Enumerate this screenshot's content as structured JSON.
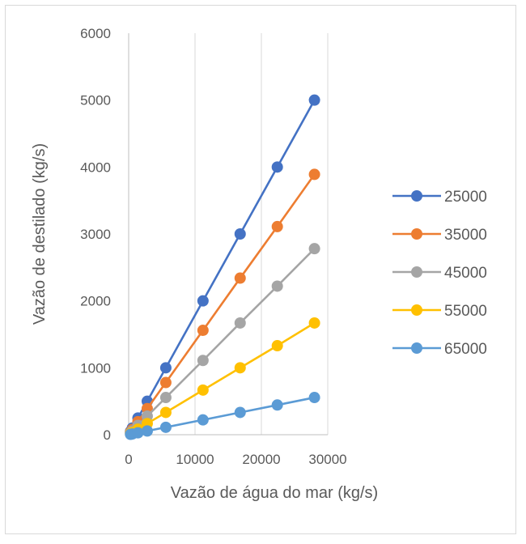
{
  "chart_data": {
    "type": "line",
    "title": "",
    "xlabel": "Vazão de água do mar (kg/s)",
    "ylabel": "Vazão de destilado (kg/s)",
    "xlim": [
      0,
      30000
    ],
    "ylim": [
      0,
      6000
    ],
    "xticks": [
      "0",
      "10000",
      "20000",
      "30000"
    ],
    "yticks": [
      "0",
      "1000",
      "2000",
      "3000",
      "4000",
      "5000",
      "6000"
    ],
    "grid": "vertical",
    "legend_position": "right",
    "x": [
      280,
      560,
      1400,
      2800,
      5600,
      11200,
      16800,
      22400,
      28000
    ],
    "series": [
      {
        "name": "25000",
        "color": "#4472C4",
        "values": [
          50,
          100,
          250,
          500,
          1000,
          2000,
          3000,
          4000,
          5000
        ]
      },
      {
        "name": "35000",
        "color": "#ED7D31",
        "values": [
          39,
          78,
          195,
          390,
          780,
          1560,
          2340,
          3110,
          3890
        ]
      },
      {
        "name": "45000",
        "color": "#A5A5A5",
        "values": [
          28,
          56,
          139,
          278,
          556,
          1110,
          1670,
          2220,
          2780
        ]
      },
      {
        "name": "55000",
        "color": "#FFC000",
        "values": [
          17,
          33,
          83,
          167,
          333,
          667,
          1000,
          1330,
          1670
        ]
      },
      {
        "name": "65000",
        "color": "#5B9BD5",
        "values": [
          6,
          11,
          28,
          56,
          111,
          222,
          333,
          444,
          556
        ]
      }
    ]
  }
}
